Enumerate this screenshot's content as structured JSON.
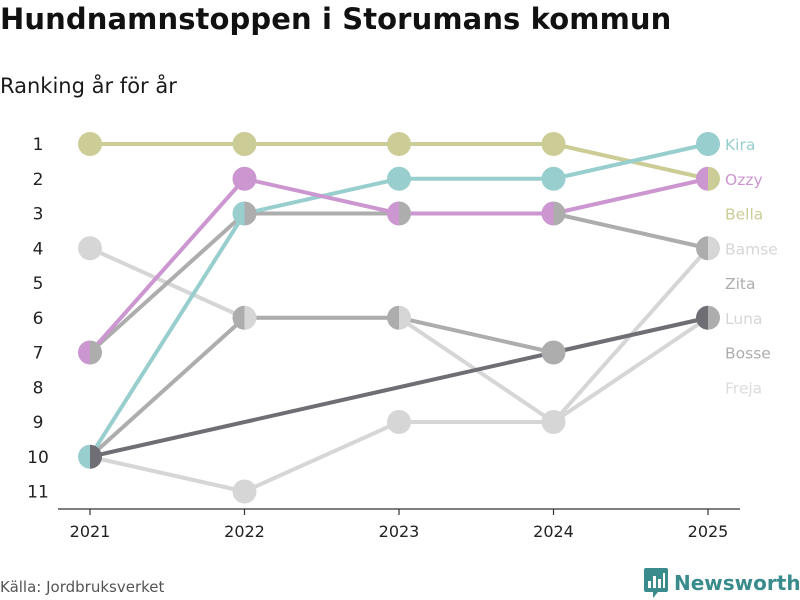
{
  "header": {
    "title": "Hundnamnstoppen i Storumans kommun",
    "subtitle": "Ranking år för år"
  },
  "footer": {
    "source": "Källa: Jordbruksverket",
    "brand": "Newsworthy",
    "brand_icon": "newsworthy-logo-icon"
  },
  "chart_data": {
    "type": "line",
    "title": "Hundnamnstoppen i Storumans kommun",
    "subtitle": "Ranking år för år",
    "xlabel": "",
    "ylabel": "",
    "x": [
      "2021",
      "2022",
      "2023",
      "2024",
      "2025"
    ],
    "y_ticks": [
      "1",
      "2",
      "3",
      "4",
      "5",
      "6",
      "7",
      "8",
      "9",
      "10",
      "11"
    ],
    "ylim": [
      1,
      11
    ],
    "y_inverted": true,
    "series": [
      {
        "name": "Freja",
        "color": "#d6d6d6",
        "values": [
          10,
          11,
          9,
          9,
          4
        ]
      },
      {
        "name": "Bamse",
        "color": "#d6d6d6",
        "values": [
          4,
          6,
          6,
          9,
          6
        ]
      },
      {
        "name": "Zita",
        "color": "#adadad",
        "values": [
          7,
          3,
          3,
          3,
          4
        ]
      },
      {
        "name": "Bosse",
        "color": "#adadad",
        "values": [
          10,
          6,
          6,
          7,
          6
        ]
      },
      {
        "name": "Luna",
        "color": "#6e6e74",
        "values": [
          10,
          null,
          null,
          null,
          6
        ]
      },
      {
        "name": "Bella",
        "color": "#cccc96",
        "values": [
          1,
          1,
          1,
          1,
          2
        ]
      },
      {
        "name": "Kira",
        "color": "#98cece",
        "values": [
          10,
          3,
          2,
          2,
          1
        ]
      },
      {
        "name": "Ozzy",
        "color": "#cc96d0",
        "values": [
          7,
          2,
          3,
          3,
          2
        ]
      }
    ],
    "end_labels": [
      {
        "name": "Kira",
        "color": "#98cece"
      },
      {
        "name": "Ozzy",
        "color": "#cc96d0"
      },
      {
        "name": "Bella",
        "color": "#cccc96"
      },
      {
        "name": "Bamse",
        "color": "#d6d6d6"
      },
      {
        "name": "Zita",
        "color": "#adadad"
      },
      {
        "name": "Luna",
        "color": "#d6d6d6"
      },
      {
        "name": "Bosse",
        "color": "#adadad"
      },
      {
        "name": "Freja",
        "color": "#dcdcdc"
      }
    ]
  }
}
